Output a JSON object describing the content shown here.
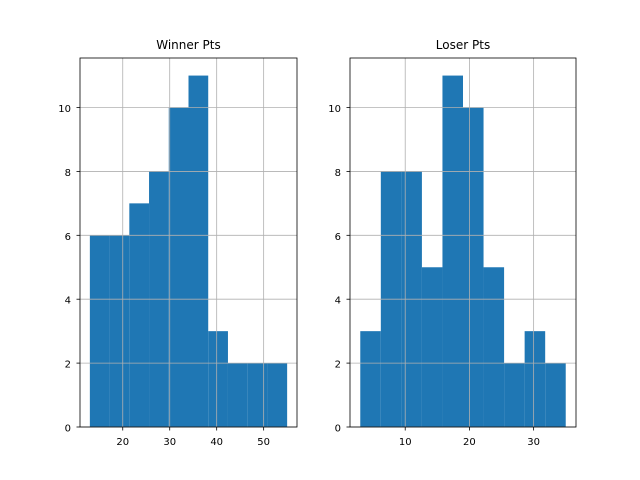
{
  "chart_data": [
    {
      "type": "bar",
      "title": "Winner Pts",
      "bar_color": "#1f77b4",
      "grid": true,
      "xlim": [
        10.9,
        57.1
      ],
      "ylim": [
        0,
        11.55
      ],
      "xticks": [
        20,
        30,
        40,
        50
      ],
      "yticks": [
        0,
        2,
        4,
        6,
        8,
        10
      ],
      "bins": [
        {
          "x0": 13.0,
          "x1": 17.2,
          "count": 6
        },
        {
          "x0": 17.2,
          "x1": 21.4,
          "count": 6
        },
        {
          "x0": 21.4,
          "x1": 25.6,
          "count": 7
        },
        {
          "x0": 25.6,
          "x1": 29.8,
          "count": 8
        },
        {
          "x0": 29.8,
          "x1": 34.0,
          "count": 10
        },
        {
          "x0": 34.0,
          "x1": 38.2,
          "count": 11
        },
        {
          "x0": 38.2,
          "x1": 42.4,
          "count": 3
        },
        {
          "x0": 42.4,
          "x1": 46.6,
          "count": 2
        },
        {
          "x0": 46.6,
          "x1": 50.8,
          "count": 2
        },
        {
          "x0": 50.8,
          "x1": 55.0,
          "count": 2
        }
      ]
    },
    {
      "type": "bar",
      "title": "Loser Pts",
      "bar_color": "#1f77b4",
      "grid": true,
      "xlim": [
        1.4,
        36.6
      ],
      "ylim": [
        0,
        11.55
      ],
      "xticks": [
        10,
        20,
        30
      ],
      "yticks": [
        0,
        2,
        4,
        6,
        8,
        10
      ],
      "bins": [
        {
          "x0": 3.0,
          "x1": 6.2,
          "count": 3
        },
        {
          "x0": 6.2,
          "x1": 9.4,
          "count": 8
        },
        {
          "x0": 9.4,
          "x1": 12.6,
          "count": 8
        },
        {
          "x0": 12.6,
          "x1": 15.8,
          "count": 5
        },
        {
          "x0": 15.8,
          "x1": 19.0,
          "count": 11
        },
        {
          "x0": 19.0,
          "x1": 22.2,
          "count": 10
        },
        {
          "x0": 22.2,
          "x1": 25.4,
          "count": 5
        },
        {
          "x0": 25.4,
          "x1": 28.6,
          "count": 2
        },
        {
          "x0": 28.6,
          "x1": 31.8,
          "count": 3
        },
        {
          "x0": 31.8,
          "x1": 35.0,
          "count": 2
        }
      ]
    }
  ]
}
